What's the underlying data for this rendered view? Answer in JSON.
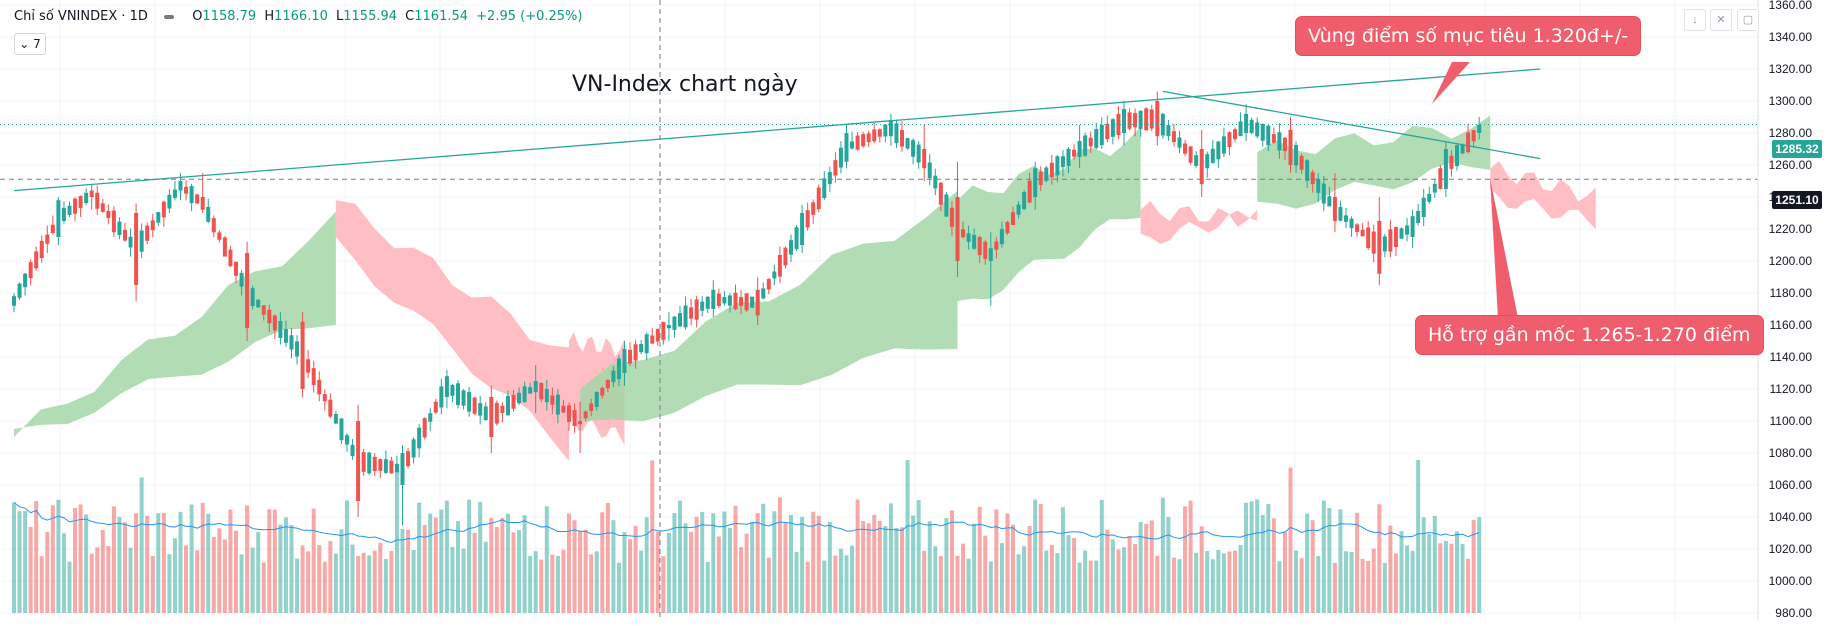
{
  "header": {
    "symbol": "Chỉ số VNINDEX · 1D",
    "open_label": "O",
    "open": "1158.79",
    "high_label": "H",
    "high": "1166.10",
    "low_label": "L",
    "low": "1155.94",
    "close_label": "C",
    "close": "1161.54",
    "change": "+2.95 (+0.25%)",
    "indicators_toggle": "⌄ 7"
  },
  "toolbar_icons": [
    "arrow-down-icon",
    "collapse-icon",
    "fullscreen-icon"
  ],
  "annotations": {
    "chart_title": "VN-Index chart ngày",
    "target_callout": "Vùng điểm số mục tiêu 1.320đ+/-",
    "support_callout": "Hỗ trợ gần mốc 1.265-1.270 điểm"
  },
  "colors": {
    "up": "#26a69a",
    "down": "#ef5350",
    "cloud_bull": "#a5d6a7",
    "cloud_bear": "#ffb3b8",
    "volume_ma": "#2196f3",
    "trendline": "#26a69a",
    "callout": "#f05d6c"
  },
  "chart_data": {
    "type": "candlestick",
    "y_axis": {
      "min": 980,
      "max": 1360,
      "step": 20,
      "tick_labels": [
        "980.00",
        "1000.00",
        "1020.00",
        "1040.00",
        "1060.00",
        "1080.00",
        "1100.00",
        "1120.00",
        "1140.00",
        "1160.00",
        "1180.00",
        "1200.00",
        "1220.00",
        "1240.00",
        "1260.00",
        "1280.00",
        "1300.00",
        "1320.00",
        "1340.00",
        "1360.00"
      ]
    },
    "current_price": "1285.32",
    "marked_level": "1251.10",
    "trendlines": [
      {
        "name": "upper",
        "from": [
          0,
          1244
        ],
        "to": [
          275,
          1320
        ]
      },
      {
        "name": "descending",
        "from": [
          207,
          1306
        ],
        "to": [
          275,
          1264
        ]
      }
    ],
    "candles": [
      {
        "i": 0,
        "o": 1172,
        "h": 1180,
        "l": 1168,
        "c": 1178
      },
      {
        "i": 8,
        "o": 1215,
        "h": 1240,
        "l": 1210,
        "c": 1238
      },
      {
        "i": 14,
        "o": 1244,
        "h": 1248,
        "l": 1232,
        "c": 1240
      },
      {
        "i": 22,
        "o": 1230,
        "h": 1236,
        "l": 1175,
        "c": 1185
      },
      {
        "i": 30,
        "o": 1244,
        "h": 1255,
        "l": 1238,
        "c": 1250
      },
      {
        "i": 34,
        "o": 1240,
        "h": 1255,
        "l": 1230,
        "c": 1232
      },
      {
        "i": 42,
        "o": 1205,
        "h": 1212,
        "l": 1150,
        "c": 1158
      },
      {
        "i": 52,
        "o": 1162,
        "h": 1168,
        "l": 1115,
        "c": 1120
      },
      {
        "i": 62,
        "o": 1100,
        "h": 1110,
        "l": 1040,
        "c": 1050
      },
      {
        "i": 70,
        "o": 1060,
        "h": 1085,
        "l": 1035,
        "c": 1080
      },
      {
        "i": 78,
        "o": 1115,
        "h": 1132,
        "l": 1108,
        "c": 1128
      },
      {
        "i": 86,
        "o": 1115,
        "h": 1122,
        "l": 1080,
        "c": 1090
      },
      {
        "i": 94,
        "o": 1118,
        "h": 1135,
        "l": 1105,
        "c": 1125
      },
      {
        "i": 102,
        "o": 1100,
        "h": 1112,
        "l": 1080,
        "c": 1098
      },
      {
        "i": 110,
        "o": 1130,
        "h": 1150,
        "l": 1122,
        "c": 1145
      },
      {
        "i": 118,
        "o": 1158,
        "h": 1168,
        "l": 1150,
        "c": 1160
      },
      {
        "i": 126,
        "o": 1170,
        "h": 1188,
        "l": 1165,
        "c": 1182
      },
      {
        "i": 134,
        "o": 1182,
        "h": 1190,
        "l": 1160,
        "c": 1166
      },
      {
        "i": 142,
        "o": 1210,
        "h": 1235,
        "l": 1205,
        "c": 1230
      },
      {
        "i": 150,
        "o": 1262,
        "h": 1285,
        "l": 1258,
        "c": 1280
      },
      {
        "i": 158,
        "o": 1278,
        "h": 1292,
        "l": 1272,
        "c": 1288
      },
      {
        "i": 164,
        "o": 1270,
        "h": 1285,
        "l": 1250,
        "c": 1258
      },
      {
        "i": 170,
        "o": 1240,
        "h": 1262,
        "l": 1190,
        "c": 1200
      },
      {
        "i": 176,
        "o": 1200,
        "h": 1218,
        "l": 1172,
        "c": 1208
      },
      {
        "i": 184,
        "o": 1240,
        "h": 1262,
        "l": 1232,
        "c": 1258
      },
      {
        "i": 192,
        "o": 1265,
        "h": 1285,
        "l": 1258,
        "c": 1275
      },
      {
        "i": 200,
        "o": 1280,
        "h": 1300,
        "l": 1272,
        "c": 1295
      },
      {
        "i": 206,
        "o": 1300,
        "h": 1306,
        "l": 1272,
        "c": 1278
      },
      {
        "i": 214,
        "o": 1270,
        "h": 1282,
        "l": 1240,
        "c": 1248
      },
      {
        "i": 222,
        "o": 1280,
        "h": 1298,
        "l": 1275,
        "c": 1292
      },
      {
        "i": 230,
        "o": 1282,
        "h": 1290,
        "l": 1255,
        "c": 1260
      },
      {
        "i": 238,
        "o": 1240,
        "h": 1255,
        "l": 1218,
        "c": 1225
      },
      {
        "i": 246,
        "o": 1225,
        "h": 1240,
        "l": 1185,
        "c": 1192
      },
      {
        "i": 252,
        "o": 1215,
        "h": 1232,
        "l": 1208,
        "c": 1228
      },
      {
        "i": 258,
        "o": 1245,
        "h": 1275,
        "l": 1240,
        "c": 1270
      },
      {
        "i": 264,
        "o": 1280,
        "h": 1290,
        "l": 1276,
        "c": 1285
      }
    ]
  }
}
